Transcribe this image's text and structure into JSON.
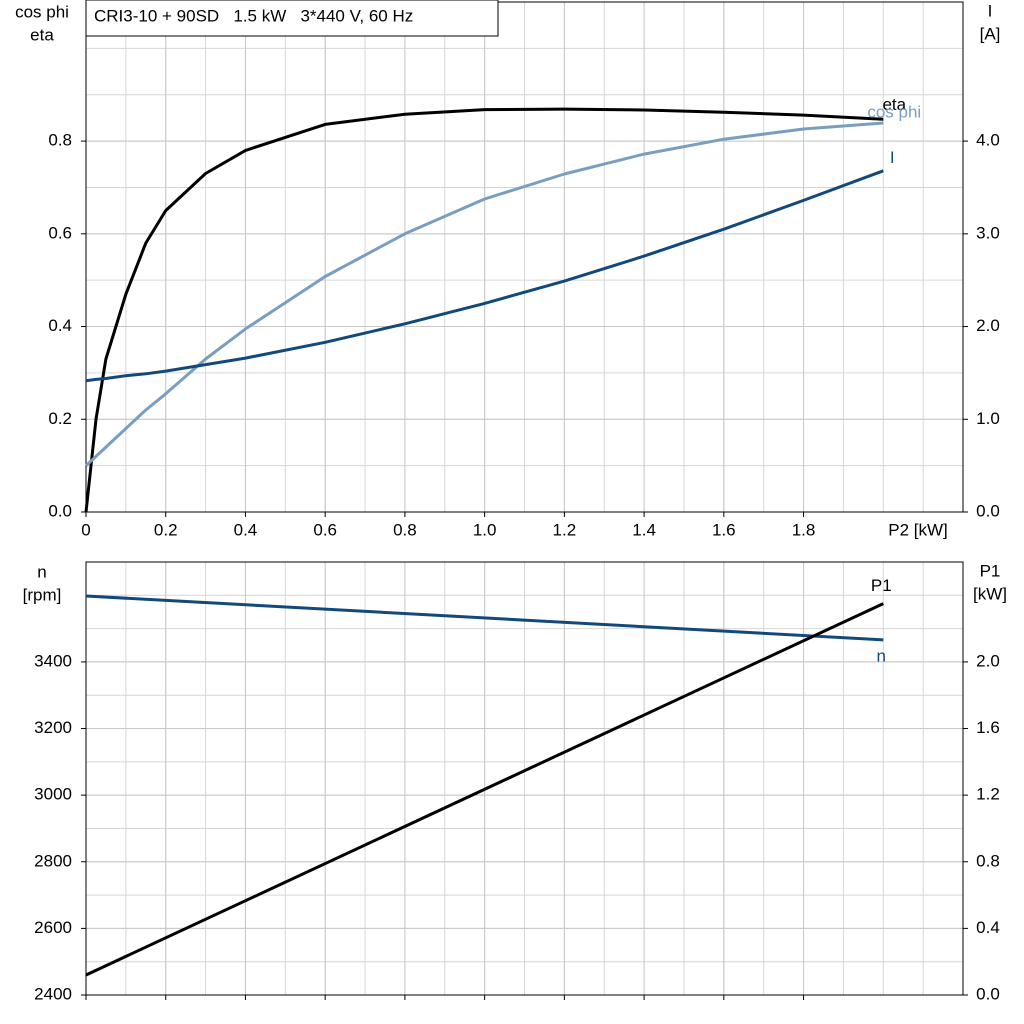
{
  "chart_data": [
    {
      "type": "line",
      "title": "CRI3-10 + 90SD   1.5 kW   3*440 V, 60 Hz",
      "xlabel": "P2 [kW]",
      "ylabel": [
        "cos phi",
        "eta"
      ],
      "y2label": [
        "I",
        "[A]"
      ],
      "x": [
        0,
        0.025,
        0.05,
        0.1,
        0.15,
        0.2,
        0.3,
        0.4,
        0.6,
        0.8,
        1.0,
        1.2,
        1.4,
        1.6,
        1.8,
        2.0
      ],
      "series": [
        {
          "name": "eta",
          "color": "#000000",
          "axis": "y",
          "values": [
            0,
            0.2,
            0.33,
            0.47,
            0.58,
            0.65,
            0.73,
            0.78,
            0.836,
            0.858,
            0.868,
            0.869,
            0.867,
            0.862,
            0.856,
            0.847
          ]
        },
        {
          "name": "cos phi",
          "color": "#7a9ebf",
          "axis": "y",
          "values": [
            0.1,
            0.12,
            0.14,
            0.18,
            0.22,
            0.255,
            0.33,
            0.395,
            0.508,
            0.6,
            0.675,
            0.729,
            0.772,
            0.804,
            0.826,
            0.839
          ]
        },
        {
          "name": "I",
          "color": "#12497c",
          "axis": "y2",
          "values": [
            1.416,
            1.43,
            1.44,
            1.47,
            1.49,
            1.52,
            1.59,
            1.66,
            1.83,
            2.03,
            2.25,
            2.49,
            2.76,
            3.05,
            3.36,
            3.68
          ]
        }
      ],
      "xlim": [
        0,
        2.2
      ],
      "xticks": [
        0,
        0.2,
        0.4,
        0.6,
        0.8,
        {
          "value": 1.0,
          "label": "1.0"
        },
        1.2,
        1.4,
        1.6,
        1.8
      ],
      "ylim": [
        0,
        1.1
      ],
      "yticks": [
        {
          "value": 0,
          "label": "0.0"
        },
        0.2,
        0.4,
        0.6,
        0.8
      ],
      "y2lim": [
        0,
        5.5
      ],
      "y2ticks": [
        {
          "value": 0,
          "label": "0.0"
        },
        {
          "value": 1,
          "label": "1.0"
        },
        {
          "value": 2,
          "label": "2.0"
        },
        {
          "value": 3,
          "label": "3.0"
        },
        {
          "value": 4,
          "label": "4.0"
        }
      ],
      "grid": true,
      "minor_grid": true,
      "xtick_labels": true
    },
    {
      "type": "line",
      "ylabel": [
        "n",
        "[rpm]"
      ],
      "y2label": [
        "P1",
        "[kW]"
      ],
      "x": [
        0,
        2.0
      ],
      "series": [
        {
          "name": "n",
          "color": "#12497c",
          "axis": "y",
          "values": [
            3598,
            3466
          ]
        },
        {
          "name": "P1",
          "color": "#000000",
          "axis": "y2",
          "values": [
            0.12,
            2.35
          ]
        }
      ],
      "xlim": [
        0,
        2.2
      ],
      "xticks": [
        0,
        0.2,
        0.4,
        0.6,
        0.8,
        1.0,
        1.2,
        1.4,
        1.6,
        1.8
      ],
      "ylim": [
        2400,
        3700
      ],
      "yticks": [
        2400,
        2600,
        2800,
        3000,
        3200,
        3400
      ],
      "y2lim": [
        0,
        2.6
      ],
      "y2ticks": [
        {
          "value": 0,
          "label": "0.0"
        },
        0.4,
        0.8,
        1.2,
        1.6,
        {
          "value": 2,
          "label": "2.0"
        }
      ],
      "grid": true,
      "minor_grid": true,
      "xtick_labels": false
    }
  ]
}
